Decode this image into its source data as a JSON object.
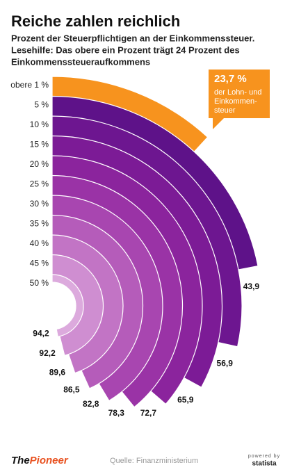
{
  "chart_data": {
    "type": "radial-bar",
    "title": "Reiche zahlen reichlich",
    "subtitle": [
      "Prozent der Steuerpflichtigen an der Einkommenssteuer.",
      "Lesehilfe: Das obere ein Prozent trägt 24 Prozent des",
      "Einkommenssteueraufkommens"
    ],
    "categories": [
      "obere 1 %",
      "5 %",
      "10 %",
      "15 %",
      "20 %",
      "25 %",
      "30 %",
      "35 %",
      "40 %",
      "45 %",
      "50 %"
    ],
    "values": [
      23.7,
      43.9,
      56.9,
      65.9,
      72.7,
      78.3,
      82.8,
      86.5,
      89.6,
      92.2,
      94.2
    ],
    "value_labels": [
      "23,7 %",
      "43,9",
      "56,9",
      "65,9",
      "72,7",
      "78,3",
      "82,8",
      "86,5",
      "89,6",
      "92,2",
      "94,2"
    ],
    "colors": [
      "#f7931e",
      "#5e1289",
      "#6d1690",
      "#7c1b96",
      "#8b249d",
      "#9a33a6",
      "#a846b0",
      "#b55cba",
      "#c274c5",
      "#cf8ed1",
      "#dcaadd"
    ],
    "annotation": [
      "der Lohn- und",
      "Einkommen-",
      "steuer"
    ],
    "source": "Quelle: Finanzministerium",
    "logo": [
      "The",
      "Pioneer"
    ],
    "credit": [
      "powered by",
      "statista"
    ]
  }
}
